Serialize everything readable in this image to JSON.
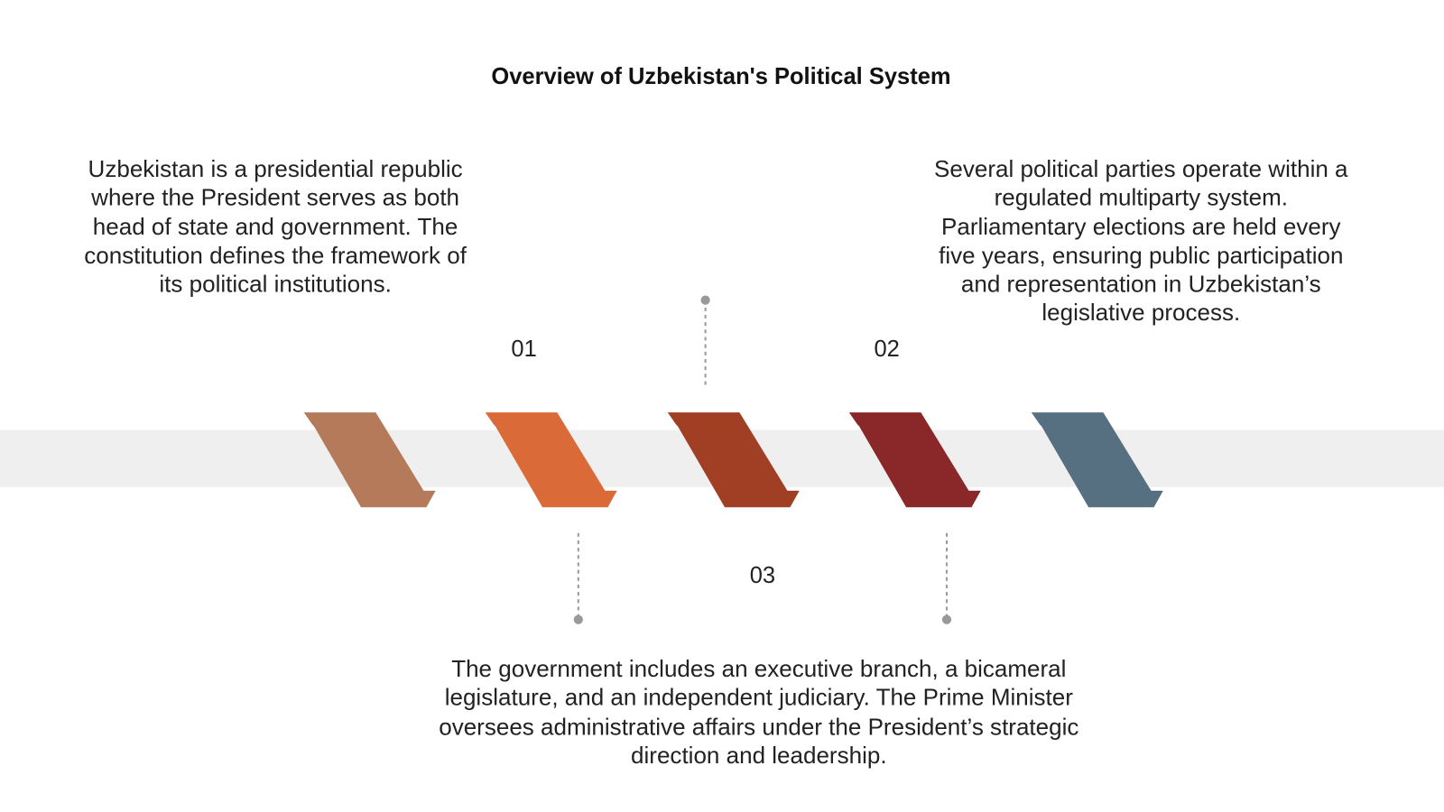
{
  "title": "Overview of Uzbekistan's Political System",
  "items": [
    {
      "number": "01",
      "text": "Uzbekistan is a presidential republic where the President serves as both head of state and government. The constitution defines the framework of its political institutions."
    },
    {
      "number": "02",
      "text": "Several political parties operate within a regulated multiparty system. Parliamentary elections are held every five years, ensuring public participation and representation in Uzbekistan’s legislative process."
    },
    {
      "number": "03",
      "text": "The government includes an executive branch, a bicameral legislature, and an independent judiciary. The Prime Minister oversees administrative affairs under the President’s strategic direction and leadership."
    }
  ]
}
